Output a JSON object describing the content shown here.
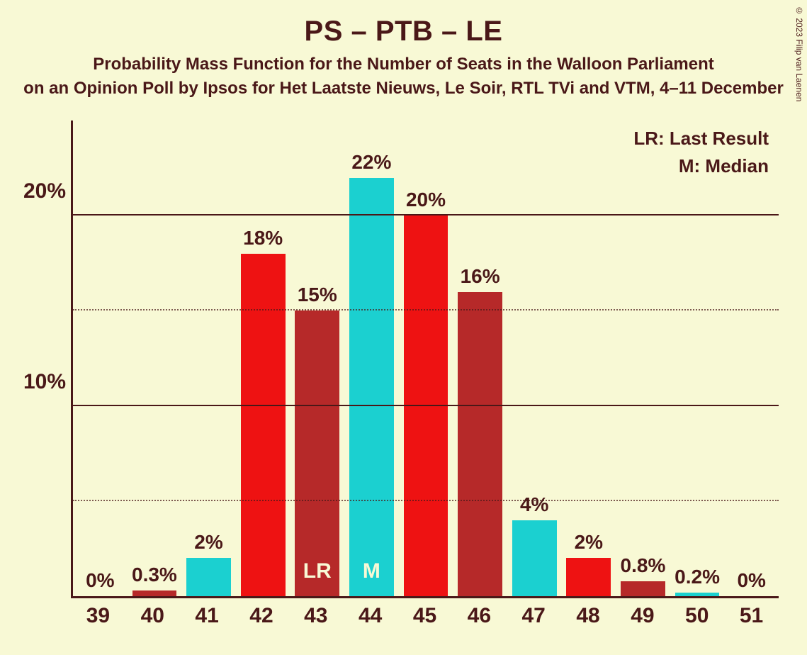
{
  "title": "PS – PTB – LE",
  "subtitle1": "Probability Mass Function for the Number of Seats in the Walloon Parliament",
  "subtitle2": "on an Opinion Poll by Ipsos for Het Laatste Nieuws, Le Soir, RTL TVi and VTM, 4–11 December",
  "copyright": "© 2023 Filip van Laenen",
  "legend": {
    "lr": "LR: Last Result",
    "m": "M: Median"
  },
  "chart": {
    "type": "bar",
    "background_color": "#f8f9d5",
    "text_color": "#4a1818",
    "axis_color": "#4a1818",
    "y": {
      "max": 25,
      "major_ticks": [
        10,
        20
      ],
      "minor_ticks": [
        5,
        15
      ],
      "tick_labels": {
        "10": "10%",
        "20": "20%"
      }
    },
    "bar_width_ratio": 0.82,
    "colors": {
      "red": "#ee1212",
      "darkred": "#b62929",
      "cyan": "#1bd0d0"
    },
    "bars": [
      {
        "x": "39",
        "value": 0,
        "label": "0%",
        "color": "red"
      },
      {
        "x": "40",
        "value": 0.3,
        "label": "0.3%",
        "color": "darkred"
      },
      {
        "x": "41",
        "value": 2,
        "label": "2%",
        "color": "cyan"
      },
      {
        "x": "42",
        "value": 18,
        "label": "18%",
        "color": "red"
      },
      {
        "x": "43",
        "value": 15,
        "label": "15%",
        "color": "darkred",
        "in_label": "LR"
      },
      {
        "x": "44",
        "value": 22,
        "label": "22%",
        "color": "cyan",
        "in_label": "M"
      },
      {
        "x": "45",
        "value": 20,
        "label": "20%",
        "color": "red"
      },
      {
        "x": "46",
        "value": 16,
        "label": "16%",
        "color": "darkred"
      },
      {
        "x": "47",
        "value": 4,
        "label": "4%",
        "color": "cyan"
      },
      {
        "x": "48",
        "value": 2,
        "label": "2%",
        "color": "red"
      },
      {
        "x": "49",
        "value": 0.8,
        "label": "0.8%",
        "color": "darkred"
      },
      {
        "x": "50",
        "value": 0.2,
        "label": "0.2%",
        "color": "cyan"
      },
      {
        "x": "51",
        "value": 0,
        "label": "0%",
        "color": "red"
      }
    ],
    "title_fontsize": 40,
    "subtitle_fontsize": 24,
    "axis_label_fontsize": 30,
    "bar_label_fontsize": 28
  }
}
